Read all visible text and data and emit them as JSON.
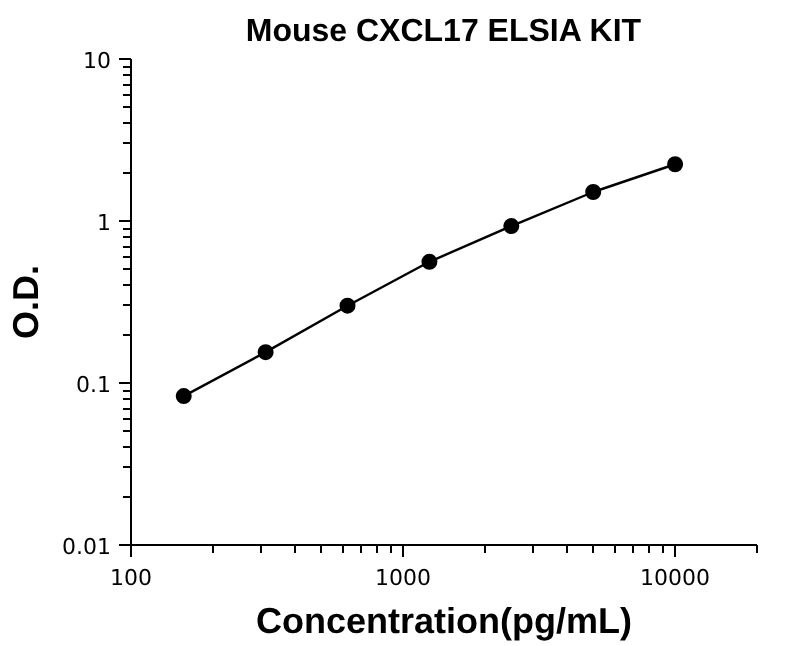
{
  "chart_data": {
    "type": "line",
    "title": "Mouse CXCL17 ELSIA KIT",
    "xlabel": "Concentration(pg/mL)",
    "ylabel": "O.D.",
    "x": [
      156.25,
      312.5,
      625,
      1250,
      2500,
      5000,
      10000
    ],
    "series": [
      {
        "color": "#000000",
        "values": [
          0.083,
          0.155,
          0.3,
          0.56,
          0.93,
          1.51,
          2.24
        ]
      }
    ],
    "log": "xy",
    "xlim": [
      100,
      20000
    ],
    "ylim": [
      0.01,
      10
    ],
    "xticks": [
      100,
      1000,
      10000
    ],
    "yticks": [
      0.01,
      0.1,
      1,
      10
    ],
    "grid": false,
    "marker": "circle",
    "line_style": "solid"
  }
}
